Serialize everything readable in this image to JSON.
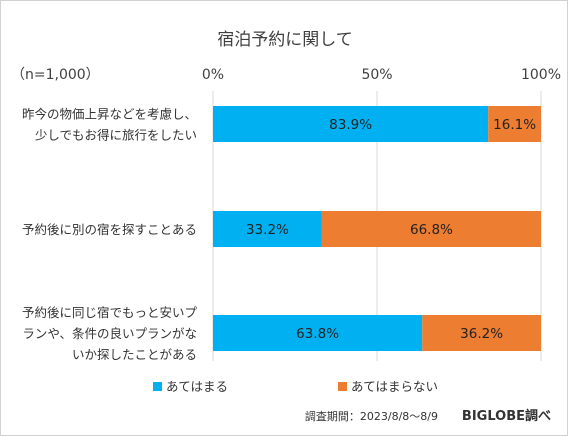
{
  "chart_data": {
    "type": "bar",
    "stacked": true,
    "orientation": "horizontal",
    "percent_stacked": true,
    "title": "宿泊予約に関して",
    "sample_note": "（n=1,000）",
    "categories": [
      "昨今の物価上昇などを考慮し、少しでもお得に旅行をしたい",
      "予約後に別の宿を探すことある",
      "予約後に同じ宿でもっと安いプランや、条件の良いプランがないか探したことがある"
    ],
    "category_lines": [
      [
        "昨今の物価上昇などを考慮し、",
        "少しでもお得に旅行をしたい"
      ],
      [
        "予約後に別の宿を探すことある"
      ],
      [
        "予約後に同じ宿でもっと安いプ",
        "ランや、条件の良いプランがな",
        "いか探したことがある"
      ]
    ],
    "series": [
      {
        "name": "あてはまる",
        "values": [
          83.9,
          33.2,
          63.8
        ],
        "labels": [
          "83.9%",
          "33.2%",
          "63.8%"
        ],
        "color": "#00b0f0"
      },
      {
        "name": "あてはまらない",
        "values": [
          16.1,
          66.8,
          36.2
        ],
        "labels": [
          "16.1%",
          "66.8%",
          "36.2%"
        ],
        "color": "#ed7d31"
      }
    ],
    "xlim": [
      0,
      100
    ],
    "x_ticks": [
      {
        "value": 0,
        "label": "0%"
      },
      {
        "value": 50,
        "label": "50%"
      },
      {
        "value": 100,
        "label": "100%"
      }
    ],
    "grid": true,
    "legend_position": "bottom"
  },
  "footer": {
    "survey_period": "調査期間：2023/8/8～8/9",
    "brand": "BIGLOBE調べ"
  },
  "colors": {
    "gridline": "#d9d9d9",
    "border": "#d0d0d0",
    "text": "#333333"
  }
}
